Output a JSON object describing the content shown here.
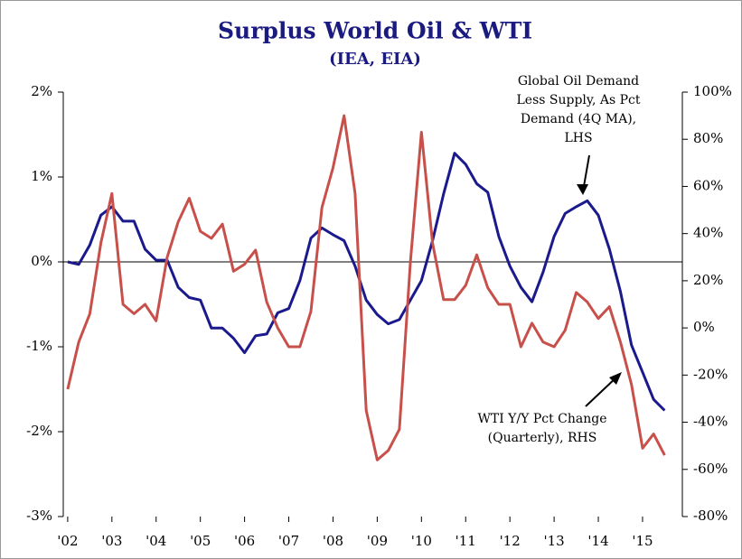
{
  "chart_data": {
    "type": "line",
    "title": "Surplus World Oil & WTI",
    "subtitle": "(IEA, EIA)",
    "x": [
      2002,
      2002.25,
      2002.5,
      2002.75,
      2003,
      2003.25,
      2003.5,
      2003.75,
      2004,
      2004.25,
      2004.5,
      2004.75,
      2005,
      2005.25,
      2005.5,
      2005.75,
      2006,
      2006.25,
      2006.5,
      2006.75,
      2007,
      2007.25,
      2007.5,
      2007.75,
      2008,
      2008.25,
      2008.5,
      2008.75,
      2009,
      2009.25,
      2009.5,
      2009.75,
      2010,
      2010.25,
      2010.5,
      2010.75,
      2011,
      2011.25,
      2011.5,
      2011.75,
      2012,
      2012.25,
      2012.5,
      2012.75,
      2013,
      2013.25,
      2013.5,
      2013.75,
      2014,
      2014.25,
      2014.5,
      2014.75,
      2015,
      2015.25,
      2015.5
    ],
    "xlim": [
      2001.9,
      2015.9
    ],
    "xticks": [
      {
        "value": 2002,
        "label": "'02"
      },
      {
        "value": 2003,
        "label": "'03"
      },
      {
        "value": 2004,
        "label": "'04"
      },
      {
        "value": 2005,
        "label": "'05"
      },
      {
        "value": 2006,
        "label": "'06"
      },
      {
        "value": 2007,
        "label": "'07"
      },
      {
        "value": 2008,
        "label": "'08"
      },
      {
        "value": 2009,
        "label": "'09"
      },
      {
        "value": 2010,
        "label": "'10"
      },
      {
        "value": 2011,
        "label": "'11"
      },
      {
        "value": 2012,
        "label": "'12"
      },
      {
        "value": 2013,
        "label": "'13"
      },
      {
        "value": 2014,
        "label": "'14"
      },
      {
        "value": 2015,
        "label": "'15"
      }
    ],
    "ylim": [
      -3,
      2
    ],
    "yticks": [
      {
        "value": -3,
        "label": "-3%"
      },
      {
        "value": -2,
        "label": "-2%"
      },
      {
        "value": -1,
        "label": "-1%"
      },
      {
        "value": 0,
        "label": "0%"
      },
      {
        "value": 1,
        "label": "1%"
      },
      {
        "value": 2,
        "label": "2%"
      }
    ],
    "y2lim": [
      -80,
      100
    ],
    "y2ticks": [
      {
        "value": -80,
        "label": "-80%"
      },
      {
        "value": -60,
        "label": "-60%"
      },
      {
        "value": -40,
        "label": "-40%"
      },
      {
        "value": -20,
        "label": "-20%"
      },
      {
        "value": 0,
        "label": "0%"
      },
      {
        "value": 20,
        "label": "20%"
      },
      {
        "value": 40,
        "label": "40%"
      },
      {
        "value": 60,
        "label": "60%"
      },
      {
        "value": 80,
        "label": "80%"
      },
      {
        "value": 100,
        "label": "100%"
      }
    ],
    "series": [
      {
        "color": "#1a1a8c",
        "values": [
          0.0,
          -0.03,
          0.2,
          0.55,
          0.65,
          0.48,
          0.48,
          0.15,
          0.02,
          0.02,
          -0.3,
          -0.42,
          -0.45,
          -0.78,
          -0.78,
          -0.9,
          -1.07,
          -0.87,
          -0.85,
          -0.6,
          -0.55,
          -0.22,
          0.28,
          0.4,
          0.32,
          0.25,
          -0.05,
          -0.45,
          -0.62,
          -0.73,
          -0.68,
          -0.45,
          -0.22,
          0.25,
          0.8,
          1.28,
          1.15,
          0.92,
          0.82,
          0.3,
          -0.05,
          -0.3,
          -0.47,
          -0.12,
          0.3,
          0.57,
          0.65,
          0.72,
          0.55,
          0.15,
          -0.35,
          -0.98,
          -1.3,
          -1.62,
          -1.75
        ]
      },
      {
        "color": "#c8504b",
        "axis": "y2",
        "values": [
          -26,
          -6,
          6,
          36,
          57,
          10,
          6,
          10,
          3,
          30,
          45,
          55,
          41,
          38,
          44,
          24,
          27,
          33,
          11,
          0,
          -8,
          -8,
          7,
          51,
          68,
          90,
          57,
          -35,
          -56,
          -52,
          -43,
          28,
          83,
          36,
          12,
          12,
          18,
          31,
          17,
          10,
          10,
          -8,
          2,
          -6,
          -8,
          -1,
          15,
          11,
          4,
          9,
          -6,
          -24,
          -51,
          -45,
          -54
        ]
      }
    ],
    "annotations": [
      {
        "lines": [
          "Global Oil Demand",
          "Less Supply, As Pct",
          "Demand (4Q MA),",
          "LHS"
        ]
      },
      {
        "lines": [
          "WTI Y/Y Pct Change",
          "(Quarterly), RHS"
        ]
      }
    ]
  }
}
